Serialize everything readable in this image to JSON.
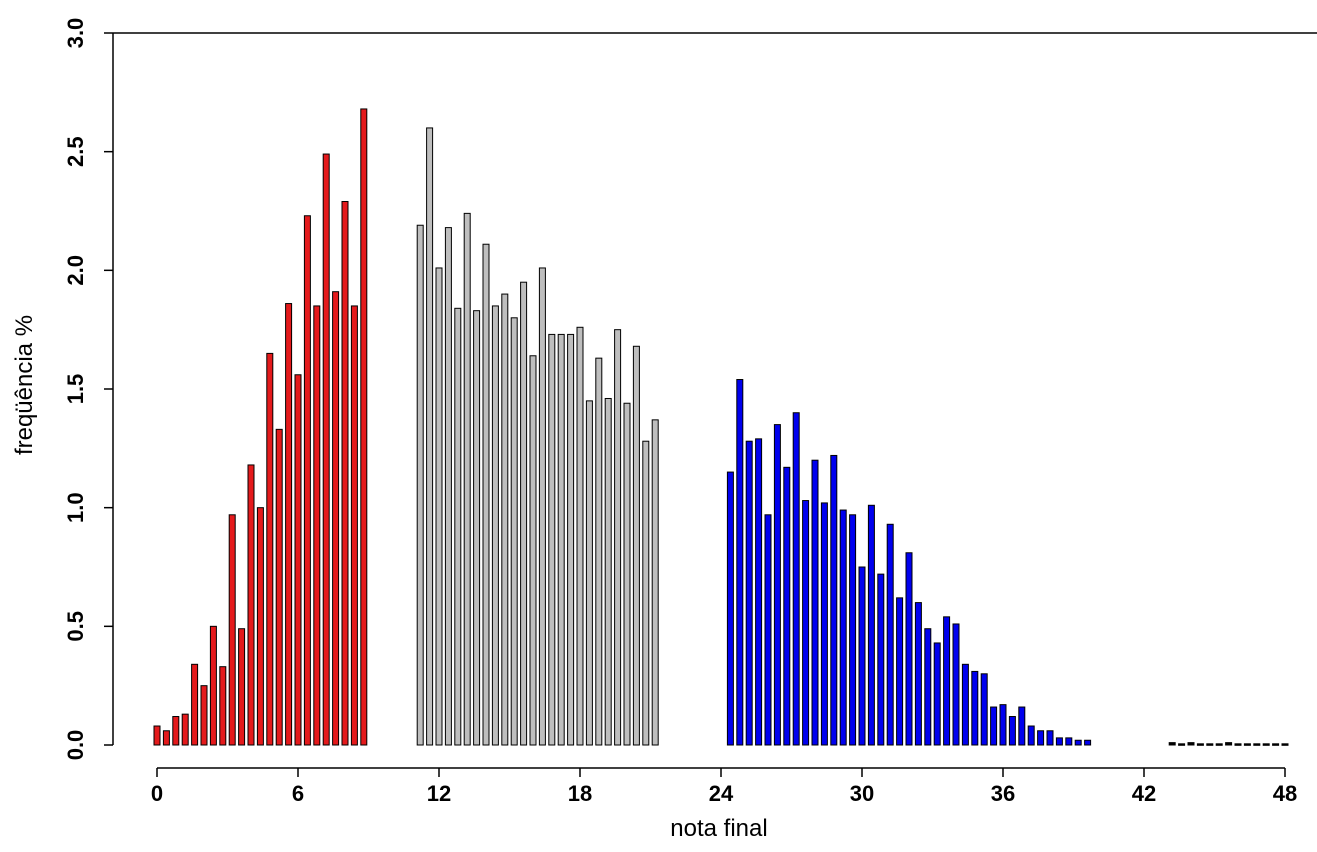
{
  "chart_data": {
    "type": "bar",
    "title": "",
    "xlabel": "nota final",
    "ylabel": "freqüência %",
    "xlim": [
      0,
      48
    ],
    "ylim": [
      0,
      3.0
    ],
    "xticks": [
      0,
      6,
      12,
      18,
      24,
      30,
      36,
      42,
      48
    ],
    "yticks": [
      "0.0",
      "0.5",
      "1.0",
      "1.5",
      "2.0",
      "2.5",
      "3.0"
    ],
    "bin_width": 0.4,
    "series": [
      {
        "color": "#e41a1c",
        "x": [
          0,
          0.4,
          0.8,
          1.2,
          1.6,
          2,
          2.4,
          2.8,
          3.2,
          3.6,
          4,
          4.4,
          4.8,
          5.2,
          5.6,
          6,
          6.4,
          6.8,
          7.2,
          7.6,
          8,
          8.4,
          8.8,
          9.2,
          9.6,
          10,
          10.4,
          10.8
        ],
        "values": [
          0.08,
          0.06,
          0.12,
          0.13,
          0.34,
          0.25,
          0.5,
          0.33,
          0.97,
          0.49,
          1.18,
          1.0,
          1.65,
          1.33,
          1.86,
          1.56,
          2.23,
          1.85,
          2.49,
          1.91,
          2.29,
          1.85,
          2.68,
          0,
          0,
          0,
          0,
          0
        ]
      },
      {
        "color": "#bebebe",
        "x": [
          11.2,
          11.6,
          12,
          12.4,
          12.8,
          13.2,
          13.6,
          14,
          14.4,
          14.8,
          15.2,
          15.6,
          16,
          16.4,
          16.8,
          17.2,
          17.6,
          18,
          18.4,
          18.8,
          19.2,
          19.6,
          20,
          20.4,
          20.8,
          21.2,
          21.6,
          22,
          22.4,
          22.8,
          23.2,
          23.6,
          24
        ],
        "values": [
          2.19,
          2.6,
          2.01,
          2.18,
          1.84,
          2.24,
          1.83,
          2.11,
          1.85,
          1.9,
          1.8,
          1.95,
          1.64,
          2.01,
          1.73,
          1.73,
          1.73,
          1.76,
          1.45,
          1.63,
          1.46,
          1.75,
          1.44,
          1.68,
          1.28,
          1.37,
          0,
          0,
          0,
          0,
          0,
          0,
          0
        ]
      },
      {
        "color": "#0000ee",
        "x": [
          24.4,
          24.8,
          25.2,
          25.6,
          26,
          26.4,
          26.8,
          27.2,
          27.6,
          28,
          28.4,
          28.8,
          29.2,
          29.6,
          30,
          30.4,
          30.8,
          31.2,
          31.6,
          32,
          32.4,
          32.8,
          33.2,
          33.6,
          34,
          34.4,
          34.8,
          35.2,
          35.6,
          36,
          36.4,
          36.8,
          37.2,
          37.6,
          38,
          38.4,
          38.8,
          39.2,
          39.6,
          40,
          40.4,
          40.8,
          41.2,
          41.6,
          42
        ],
        "values": [
          1.15,
          1.54,
          1.28,
          1.29,
          0.97,
          1.35,
          1.17,
          1.4,
          1.03,
          1.2,
          1.02,
          1.22,
          0.99,
          0.97,
          0.75,
          1.01,
          0.72,
          0.93,
          0.62,
          0.81,
          0.6,
          0.49,
          0.43,
          0.54,
          0.51,
          0.34,
          0.31,
          0.3,
          0.16,
          0.17,
          0.12,
          0.16,
          0.08,
          0.06,
          0.06,
          0.03,
          0.03,
          0.02,
          0.02,
          0,
          0,
          0,
          0,
          0,
          0
        ]
      },
      {
        "color": "#000000",
        "x": [
          43.2,
          43.6,
          44,
          44.4,
          44.8,
          45.2,
          45.6,
          46,
          46.4,
          46.8,
          47.2,
          47.6,
          48
        ],
        "values": [
          0.01,
          0.005,
          0.01,
          0.005,
          0.005,
          0.005,
          0.01,
          0.005,
          0.005,
          0.005,
          0.005,
          0.005,
          0.005
        ]
      }
    ]
  }
}
